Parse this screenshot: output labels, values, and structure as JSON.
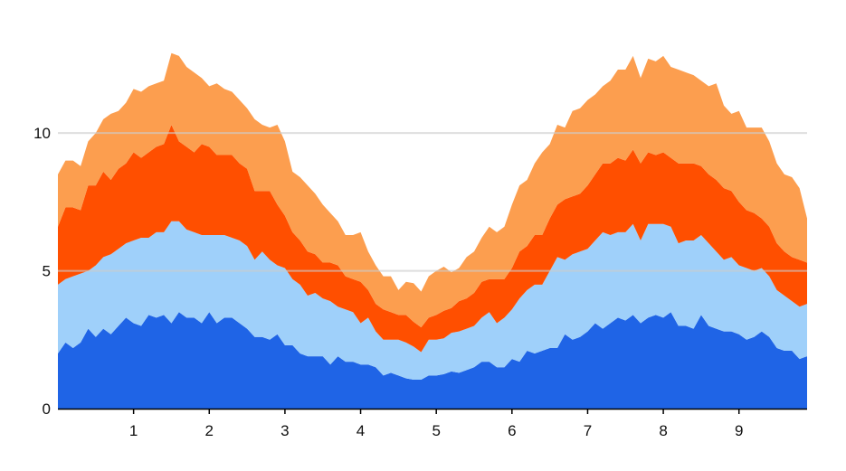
{
  "chart_data": {
    "type": "area",
    "stacked": true,
    "x": [
      0,
      0.1,
      0.2,
      0.3,
      0.4,
      0.5,
      0.6,
      0.7,
      0.8,
      0.9,
      1.0,
      1.1,
      1.2,
      1.3,
      1.4,
      1.5,
      1.6,
      1.7,
      1.8,
      1.9,
      2.0,
      2.1,
      2.2,
      2.3,
      2.4,
      2.5,
      2.6,
      2.7,
      2.8,
      2.9,
      3.0,
      3.1,
      3.2,
      3.3,
      3.4,
      3.5,
      3.6,
      3.7,
      3.8,
      3.9,
      4.0,
      4.1,
      4.2,
      4.3,
      4.4,
      4.5,
      4.6,
      4.7,
      4.8,
      4.9,
      5.0,
      5.1,
      5.2,
      5.3,
      5.4,
      5.5,
      5.6,
      5.7,
      5.8,
      5.9,
      6.0,
      6.1,
      6.2,
      6.3,
      6.4,
      6.5,
      6.6,
      6.7,
      6.8,
      6.9,
      7.0,
      7.1,
      7.2,
      7.3,
      7.4,
      7.5,
      7.6,
      7.7,
      7.8,
      7.9,
      8.0,
      8.1,
      8.2,
      8.3,
      8.4,
      8.5,
      8.6,
      8.7,
      8.8,
      8.9,
      9.0,
      9.1,
      9.2,
      9.3,
      9.4,
      9.5,
      9.6,
      9.7,
      9.8,
      9.9
    ],
    "series": [
      {
        "color": "#1f64e6",
        "values": [
          2.0,
          2.4,
          2.2,
          2.4,
          2.9,
          2.6,
          2.9,
          2.7,
          3.0,
          3.3,
          3.1,
          3.0,
          3.4,
          3.3,
          3.4,
          3.1,
          3.5,
          3.3,
          3.3,
          3.1,
          3.5,
          3.1,
          3.3,
          3.3,
          3.1,
          2.9,
          2.6,
          2.6,
          2.5,
          2.7,
          2.3,
          2.3,
          2.0,
          1.9,
          1.9,
          1.9,
          1.6,
          1.9,
          1.7,
          1.7,
          1.6,
          1.6,
          1.5,
          1.2,
          1.3,
          1.2,
          1.1,
          1.05,
          1.05,
          1.2,
          1.2,
          1.25,
          1.35,
          1.3,
          1.4,
          1.5,
          1.7,
          1.7,
          1.5,
          1.5,
          1.8,
          1.7,
          2.1,
          2.0,
          2.1,
          2.2,
          2.2,
          2.7,
          2.5,
          2.6,
          2.8,
          3.1,
          2.9,
          3.1,
          3.3,
          3.2,
          3.4,
          3.1,
          3.3,
          3.4,
          3.3,
          3.5,
          3.0,
          3.0,
          2.9,
          3.4,
          3.0,
          2.9,
          2.8,
          2.8,
          2.7,
          2.5,
          2.6,
          2.8,
          2.6,
          2.2,
          2.1,
          2.1,
          1.8,
          1.9
        ]
      },
      {
        "color": "#9fd0fa",
        "values": [
          2.5,
          2.3,
          2.6,
          2.5,
          2.1,
          2.6,
          2.6,
          2.9,
          2.8,
          2.7,
          3.0,
          3.2,
          2.8,
          3.1,
          3.0,
          3.7,
          3.3,
          3.2,
          3.1,
          3.2,
          2.8,
          3.2,
          3.0,
          2.9,
          3.0,
          3.0,
          2.8,
          3.1,
          2.9,
          2.5,
          2.8,
          2.4,
          2.5,
          2.2,
          2.3,
          2.1,
          2.3,
          1.8,
          1.9,
          1.8,
          1.5,
          1.7,
          1.3,
          1.3,
          1.2,
          1.3,
          1.3,
          1.2,
          1.0,
          1.3,
          1.3,
          1.3,
          1.4,
          1.5,
          1.5,
          1.5,
          1.6,
          1.8,
          1.6,
          1.8,
          1.8,
          2.3,
          2.2,
          2.5,
          2.4,
          2.8,
          3.3,
          2.7,
          3.1,
          3.1,
          3.0,
          3.0,
          3.5,
          3.2,
          3.1,
          3.2,
          3.3,
          3.0,
          3.4,
          3.3,
          3.4,
          3.1,
          3.0,
          3.1,
          3.2,
          2.9,
          3.0,
          2.8,
          2.6,
          2.7,
          2.5,
          2.6,
          2.4,
          2.3,
          2.2,
          2.1,
          2.0,
          1.8,
          1.9,
          1.9
        ]
      },
      {
        "color": "#ff4f00",
        "values": [
          2.1,
          2.6,
          2.5,
          2.3,
          3.1,
          2.9,
          3.1,
          2.7,
          2.9,
          2.9,
          3.2,
          2.9,
          3.1,
          3.1,
          3.2,
          3.5,
          2.9,
          3.0,
          2.9,
          3.3,
          3.2,
          2.9,
          2.9,
          3.0,
          2.8,
          2.8,
          2.5,
          2.2,
          2.5,
          2.2,
          1.9,
          1.7,
          1.6,
          1.6,
          1.4,
          1.3,
          1.4,
          1.5,
          1.2,
          1.2,
          1.5,
          1.0,
          1.0,
          1.1,
          1.0,
          0.9,
          1.0,
          0.9,
          0.9,
          0.8,
          0.9,
          1.0,
          0.9,
          1.1,
          1.1,
          1.2,
          1.3,
          1.2,
          1.6,
          1.4,
          1.5,
          1.7,
          1.6,
          1.8,
          1.8,
          1.9,
          1.9,
          2.2,
          2.1,
          2.1,
          2.3,
          2.4,
          2.5,
          2.6,
          2.7,
          2.6,
          2.7,
          2.8,
          2.6,
          2.5,
          2.6,
          2.5,
          2.9,
          2.8,
          2.8,
          2.5,
          2.5,
          2.6,
          2.6,
          2.4,
          2.3,
          2.1,
          2.1,
          1.8,
          1.8,
          1.7,
          1.6,
          1.6,
          1.7,
          1.5
        ]
      },
      {
        "color": "#fc9e4f",
        "values": [
          1.9,
          1.7,
          1.7,
          1.6,
          1.6,
          1.9,
          1.9,
          2.4,
          2.1,
          2.2,
          2.3,
          2.4,
          2.4,
          2.3,
          2.3,
          2.6,
          3.1,
          2.9,
          2.9,
          2.4,
          2.2,
          2.6,
          2.4,
          2.3,
          2.3,
          2.2,
          2.6,
          2.4,
          2.3,
          2.9,
          2.7,
          2.2,
          2.3,
          2.4,
          2.2,
          2.1,
          1.8,
          1.6,
          1.5,
          1.6,
          1.8,
          1.4,
          1.4,
          1.2,
          1.3,
          0.9,
          1.2,
          1.4,
          1.3,
          1.5,
          1.6,
          1.6,
          1.3,
          1.2,
          1.5,
          1.5,
          1.6,
          1.9,
          1.7,
          1.9,
          2.3,
          2.4,
          2.4,
          2.6,
          3.0,
          2.7,
          2.9,
          2.6,
          3.1,
          3.1,
          3.1,
          2.9,
          2.8,
          3.0,
          3.2,
          3.3,
          3.4,
          3.1,
          3.4,
          3.4,
          3.5,
          3.3,
          3.4,
          3.3,
          3.2,
          3.1,
          3.2,
          3.5,
          3.0,
          2.8,
          3.3,
          3.0,
          3.1,
          3.3,
          3.1,
          2.9,
          2.8,
          2.9,
          2.6,
          1.6
        ]
      }
    ],
    "xlim": [
      0,
      9.9
    ],
    "ylim": [
      0,
      14.5
    ],
    "x_ticks": [
      1,
      2,
      3,
      4,
      5,
      6,
      7,
      8,
      9
    ],
    "y_ticks": [
      0,
      5,
      10
    ],
    "x_tick_labels": [
      "1",
      "2",
      "3",
      "4",
      "5",
      "6",
      "7",
      "8",
      "9"
    ],
    "y_tick_labels": [
      "0",
      "5",
      "10"
    ],
    "gridlines": "horizontal, drawn over the areas",
    "grid_color": "#cccccc",
    "title": "",
    "xlabel": "",
    "ylabel": ""
  }
}
